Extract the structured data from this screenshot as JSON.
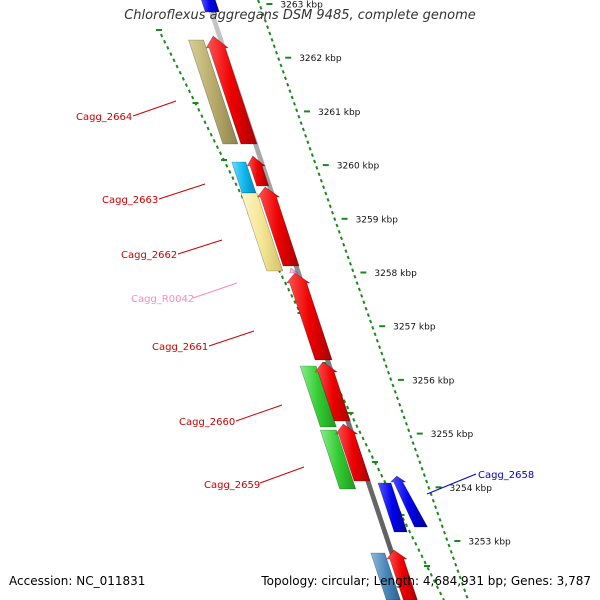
{
  "title": "Chloroflexus aggregans DSM 9485, complete genome",
  "footer": {
    "accession": "Accession: NC_011831",
    "summary": "Topology: circular; Length: 4,684,931 bp; Genes: 3,787"
  },
  "colors": {
    "forward_cds": "#ff0000",
    "reverse_cds_blue": "#0000ee",
    "backbone": "#888888",
    "tick": "#1a8a1a",
    "gene_label": "#cc0000",
    "rna_label": "#ff88bb",
    "blue_label": "#0000cc"
  },
  "ruler_ticks": [
    "3263 kbp",
    "3262 kbp",
    "3261 kbp",
    "3260 kbp",
    "3259 kbp",
    "3258 kbp",
    "3257 kbp",
    "3256 kbp",
    "3255 kbp",
    "3254 kbp",
    "3253 kbp"
  ],
  "gene_labels": [
    {
      "name": "Cagg_2664",
      "kind": "cds"
    },
    {
      "name": "Cagg_2663",
      "kind": "cds"
    },
    {
      "name": "Cagg_2662",
      "kind": "cds"
    },
    {
      "name": "Cagg_R0042",
      "kind": "rna"
    },
    {
      "name": "Cagg_2661",
      "kind": "cds"
    },
    {
      "name": "Cagg_2660",
      "kind": "cds"
    },
    {
      "name": "Cagg_2659",
      "kind": "cds"
    },
    {
      "name": "Cagg_2658",
      "kind": "blue"
    }
  ]
}
